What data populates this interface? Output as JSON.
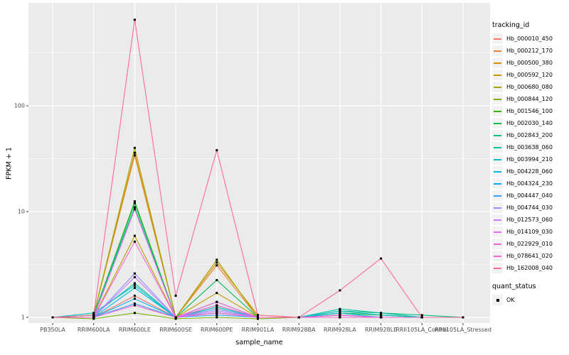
{
  "chart_data": {
    "type": "line",
    "title": "",
    "xlabel": "sample_name",
    "ylabel": "FPKM + 1",
    "y_scale": "log10",
    "y_ticks": [
      1,
      10,
      100
    ],
    "y_tick_labels": [
      "1",
      "10",
      "100"
    ],
    "y_minor_ticks": [
      3.1623,
      31.623,
      316.23
    ],
    "ylim_approx": [
      0.88,
      1000
    ],
    "grid": "on",
    "panel_bg": "#EBEBEB",
    "grid_color": "#FFFFFF",
    "tick_label_color": "#4D4D4D",
    "point_color": "#000000",
    "legend_position": "right",
    "categories": [
      "PB350LA",
      "RRIM600LA",
      "RRIM600LE",
      "RRIM600SE",
      "RRIM600PE",
      "RRIM901LA",
      "RRIM928BA",
      "RRIM928LA",
      "RRIM928LE",
      "RRII105LA_Control",
      "RRII105LA_Stressed"
    ],
    "series": [
      {
        "name": "Hb_000010_450",
        "color": "#F8766D",
        "values": [
          1.0,
          1.0,
          1.6,
          1.0,
          1.1,
          1.0,
          1.0,
          1.0,
          1.0,
          1.0,
          1.0
        ]
      },
      {
        "name": "Hb_000212_170",
        "color": "#EA8331",
        "values": [
          1.0,
          1.05,
          34,
          1.0,
          3.1,
          1.0,
          1.0,
          1.05,
          1.0,
          1.0,
          1.0
        ]
      },
      {
        "name": "Hb_000500_380",
        "color": "#D89000",
        "values": [
          1.0,
          1.05,
          36,
          1.0,
          3.3,
          1.05,
          1.0,
          1.1,
          1.05,
          1.0,
          1.0
        ]
      },
      {
        "name": "Hb_000592_120",
        "color": "#C09B00",
        "values": [
          1.0,
          1.0,
          5.9,
          1.0,
          1.7,
          1.0,
          1.0,
          1.05,
          1.0,
          1.0,
          1.0
        ]
      },
      {
        "name": "Hb_000680_080",
        "color": "#A3A500",
        "values": [
          1.0,
          1.05,
          40,
          1.0,
          3.5,
          1.0,
          1.0,
          1.0,
          1.0,
          1.0,
          1.0
        ]
      },
      {
        "name": "Hb_000844_120",
        "color": "#7CAE00",
        "values": [
          1.0,
          0.97,
          1.1,
          0.97,
          1.0,
          0.97,
          1.0,
          1.0,
          1.0,
          1.0,
          1.0
        ]
      },
      {
        "name": "Hb_001546_100",
        "color": "#39B600",
        "values": [
          1.0,
          1.05,
          12.5,
          1.0,
          1.3,
          1.0,
          1.0,
          1.05,
          1.0,
          1.0,
          1.0
        ]
      },
      {
        "name": "Hb_002030_140",
        "color": "#00BB4E",
        "values": [
          1.0,
          1.05,
          12.0,
          1.0,
          2.25,
          1.0,
          1.0,
          1.1,
          1.05,
          1.0,
          1.0
        ]
      },
      {
        "name": "Hb_002843_200",
        "color": "#00BF7D",
        "values": [
          1.0,
          1.05,
          11.0,
          1.0,
          1.4,
          1.0,
          1.0,
          1.15,
          1.1,
          1.05,
          1.0
        ]
      },
      {
        "name": "Hb_003638_060",
        "color": "#00C1A3",
        "values": [
          1.0,
          1.05,
          2.1,
          1.0,
          1.25,
          1.0,
          1.0,
          1.2,
          1.1,
          1.0,
          1.0
        ]
      },
      {
        "name": "Hb_003994_210",
        "color": "#00BFC4",
        "values": [
          1.0,
          1.1,
          2.0,
          1.0,
          1.2,
          1.0,
          1.0,
          1.15,
          1.05,
          1.0,
          1.0
        ]
      },
      {
        "name": "Hb_004228_060",
        "color": "#00BAE0",
        "values": [
          1.0,
          1.0,
          1.9,
          1.0,
          1.15,
          1.0,
          1.0,
          1.1,
          1.0,
          1.0,
          1.0
        ]
      },
      {
        "name": "Hb_004324_230",
        "color": "#00B0F6",
        "values": [
          1.0,
          1.0,
          1.5,
          1.0,
          1.1,
          1.0,
          1.0,
          1.05,
          1.0,
          1.0,
          1.0
        ]
      },
      {
        "name": "Hb_004447_040",
        "color": "#35A2FF",
        "values": [
          1.0,
          1.0,
          1.35,
          1.0,
          1.05,
          1.0,
          1.0,
          1.0,
          1.0,
          1.0,
          1.0
        ]
      },
      {
        "name": "Hb_004744_030",
        "color": "#9590FF",
        "values": [
          1.0,
          1.0,
          2.6,
          1.0,
          1.2,
          1.0,
          1.0,
          1.0,
          1.0,
          1.0,
          1.0
        ]
      },
      {
        "name": "Hb_012573_060",
        "color": "#C77CFF",
        "values": [
          1.0,
          1.0,
          2.4,
          1.0,
          1.15,
          1.0,
          1.0,
          1.0,
          1.0,
          1.0,
          1.0
        ]
      },
      {
        "name": "Hb_014109_030",
        "color": "#E76BF3",
        "values": [
          1.0,
          1.0,
          10.5,
          1.0,
          1.3,
          1.0,
          1.0,
          1.0,
          1.0,
          1.0,
          1.0
        ]
      },
      {
        "name": "Hb_022929_010",
        "color": "#FA62DB",
        "values": [
          1.0,
          1.0,
          5.2,
          1.0,
          1.4,
          1.0,
          1.0,
          1.05,
          1.0,
          1.0,
          1.0
        ]
      },
      {
        "name": "Hb_078641_020",
        "color": "#FF61CC",
        "values": [
          1.0,
          1.0,
          1.3,
          1.0,
          1.1,
          1.0,
          1.0,
          1.0,
          1.0,
          1.0,
          1.0
        ]
      },
      {
        "name": "Hb_162008_040",
        "color": "#FF6A98",
        "values": [
          1.0,
          1.05,
          650,
          1.6,
          38,
          1.05,
          1.0,
          1.8,
          3.6,
          1.0,
          1.0
        ]
      }
    ],
    "legend": {
      "tracking_title": "tracking_id",
      "quant_title": "quant_status",
      "quant_items": [
        "OK"
      ]
    }
  }
}
